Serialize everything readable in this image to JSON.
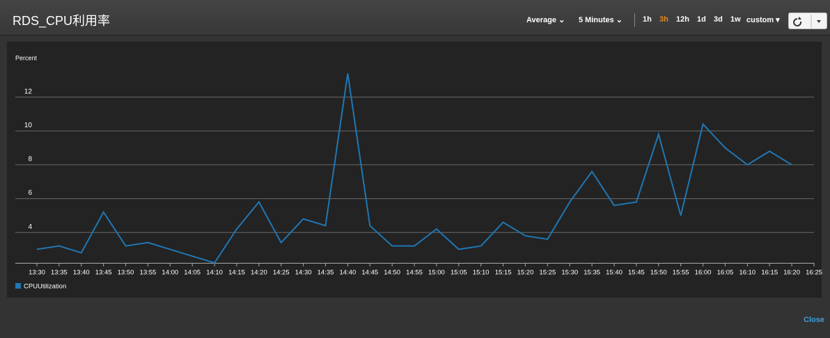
{
  "header": {
    "title": "RDS_CPU利用率",
    "statistic": "Average",
    "period": "5 Minutes",
    "ranges": [
      "1h",
      "3h",
      "12h",
      "1d",
      "3d",
      "1w",
      "custom"
    ]
  },
  "chart_data": {
    "type": "line",
    "y_label": "Percent",
    "categories": [
      "13:30",
      "13:35",
      "13:40",
      "13:45",
      "13:50",
      "13:55",
      "14:00",
      "14:05",
      "14:10",
      "14:15",
      "14:20",
      "14:25",
      "14:30",
      "14:35",
      "14:40",
      "14:45",
      "14:50",
      "14:55",
      "15:00",
      "15:05",
      "15:10",
      "15:15",
      "15:20",
      "15:25",
      "15:30",
      "15:35",
      "15:40",
      "15:45",
      "15:50",
      "15:55",
      "16:00",
      "16:05",
      "16:10",
      "16:15",
      "16:20",
      "16:25"
    ],
    "series": [
      {
        "name": "CPUUtilization",
        "color": "#1f77b4",
        "values": [
          3.0,
          3.2,
          2.8,
          5.2,
          3.2,
          3.4,
          3.0,
          2.6,
          2.2,
          4.2,
          5.8,
          3.4,
          4.8,
          4.4,
          13.4,
          4.4,
          3.2,
          3.2,
          4.2,
          3.0,
          3.2,
          4.6,
          3.8,
          3.6,
          5.8,
          7.6,
          5.6,
          5.8,
          9.8,
          5.0,
          10.4,
          9.0,
          8.0,
          8.8,
          8.0,
          null
        ]
      }
    ],
    "ylim": [
      2.2,
      14
    ],
    "yticks": [
      4,
      6,
      8,
      10,
      12
    ],
    "grid": true
  },
  "footer": {
    "close": "Close"
  }
}
